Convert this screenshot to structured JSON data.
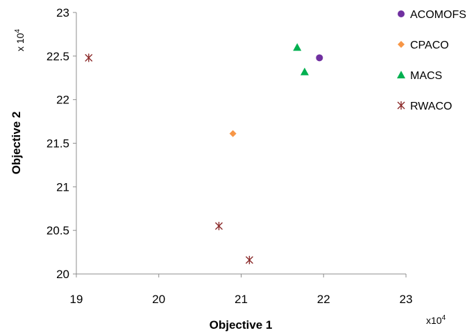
{
  "chart_data": {
    "type": "scatter",
    "xlabel": "Objective 1",
    "ylabel": "Objective 2",
    "x_multiplier": "x10",
    "y_multiplier": "x 10",
    "multiplier_exponent": "4",
    "xlim": [
      19,
      23
    ],
    "ylim": [
      20,
      23
    ],
    "x_ticks": [
      "19",
      "20",
      "21",
      "22",
      "23"
    ],
    "y_ticks": [
      "20",
      "20.5",
      "21",
      "21.5",
      "22",
      "22.5",
      "23"
    ],
    "grid": false,
    "legend_position": "right",
    "series": [
      {
        "name": "ACOMOFS",
        "marker": "circle",
        "color": "#7030a0",
        "points": [
          [
            21.95,
            22.48
          ]
        ]
      },
      {
        "name": "CPACO",
        "marker": "diamond",
        "color": "#f79646",
        "points": [
          [
            20.9,
            21.61
          ]
        ]
      },
      {
        "name": "MACS",
        "marker": "triangle",
        "color": "#00b050",
        "points": [
          [
            21.68,
            22.6
          ],
          [
            21.77,
            22.32
          ]
        ]
      },
      {
        "name": "RWACO",
        "marker": "asterisk",
        "color": "#8b2a2a",
        "points": [
          [
            19.15,
            22.48
          ],
          [
            20.73,
            20.55
          ],
          [
            21.1,
            20.16
          ]
        ]
      }
    ]
  }
}
